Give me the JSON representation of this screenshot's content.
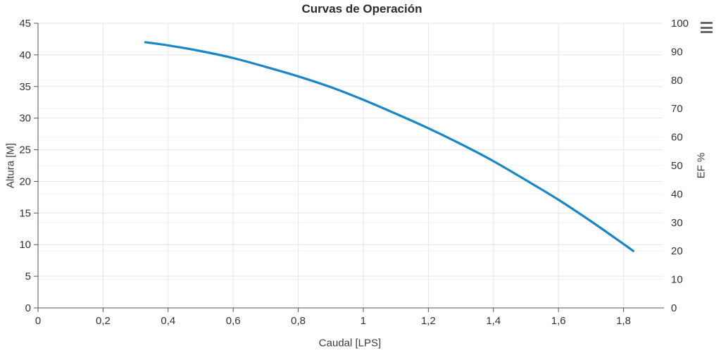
{
  "chart": {
    "title": "Curvas de Operación",
    "context_menu": {
      "icon": "hamburger-menu-icon",
      "aria_label": "Chart context menu"
    },
    "colors": {
      "background": "#ffffff",
      "series": "#1886c7",
      "grid_major": "#e6e6e6",
      "grid_minor": "#f2f2f2",
      "axis_line": "#555555",
      "tick_label": "#333333",
      "axis_title": "#3b3b3b",
      "title": "#2b2b2b",
      "menu_icon": "#666666"
    }
  },
  "chart_data": {
    "type": "line",
    "title": "Curvas de Operación",
    "xlabel": "Caudal [LPS]",
    "ylabel_left": "Altura [M]",
    "ylabel_right": "EF %",
    "xlim": [
      0,
      1.92
    ],
    "ylim_left": [
      0,
      45
    ],
    "ylim_right": [
      0,
      100
    ],
    "grid": true,
    "legend": false,
    "x_ticks": [
      0,
      0.2,
      0.4,
      0.6,
      0.8,
      1,
      1.2,
      1.4,
      1.6,
      1.8
    ],
    "x_tick_labels": [
      "0",
      "0,2",
      "0,4",
      "0,6",
      "0,8",
      "1",
      "1,2",
      "1,4",
      "1,6",
      "1,8"
    ],
    "y_left_ticks": [
      0,
      5,
      10,
      15,
      20,
      25,
      30,
      35,
      40,
      45
    ],
    "y_left_tick_labels": [
      "0",
      "5",
      "10",
      "15",
      "20",
      "25",
      "30",
      "35",
      "40",
      "45"
    ],
    "y_right_ticks": [
      0,
      10,
      20,
      30,
      40,
      50,
      60,
      70,
      80,
      90,
      100
    ],
    "y_right_tick_labels": [
      "0",
      "10",
      "20",
      "30",
      "40",
      "50",
      "60",
      "70",
      "80",
      "90",
      "100"
    ],
    "series": [
      {
        "name": "Altura",
        "axis": "left",
        "color": "#1886c7",
        "points": [
          [
            0.33,
            42.0
          ],
          [
            0.4,
            41.5
          ],
          [
            0.5,
            40.6
          ],
          [
            0.6,
            39.5
          ],
          [
            0.7,
            38.1
          ],
          [
            0.8,
            36.6
          ],
          [
            0.9,
            34.9
          ],
          [
            1.0,
            32.9
          ],
          [
            1.1,
            30.7
          ],
          [
            1.2,
            28.4
          ],
          [
            1.3,
            25.9
          ],
          [
            1.4,
            23.2
          ],
          [
            1.5,
            20.2
          ],
          [
            1.6,
            17.1
          ],
          [
            1.7,
            13.7
          ],
          [
            1.8,
            10.1
          ],
          [
            1.83,
            9.0
          ]
        ]
      }
    ]
  }
}
